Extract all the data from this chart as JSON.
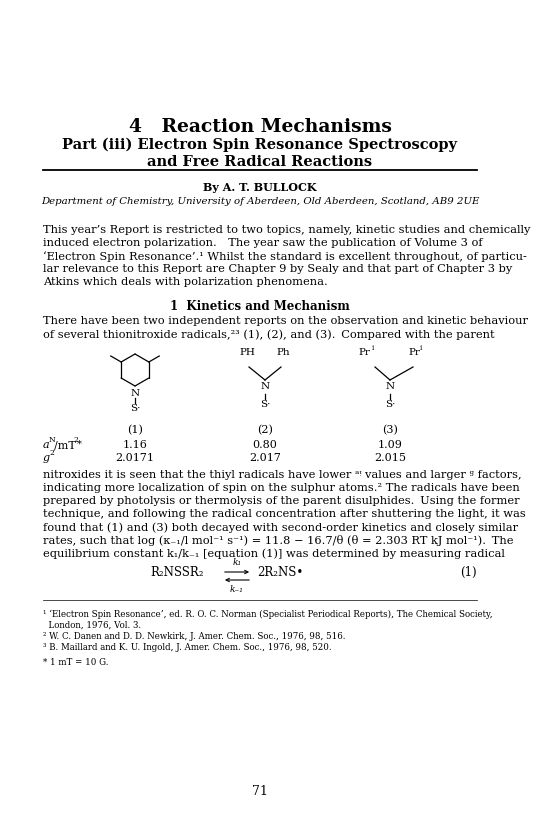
{
  "title": "4   Reaction Mechanisms",
  "subtitle_line1": "Part (iii) Electron Spin Resonance Spectroscopy",
  "subtitle_line2": "and Free Radical Reactions",
  "author": "By A. T. BULLOCK",
  "department": "Department of Chemistry, University of Aberdeen, Old Aberdeen, Scotland, AB9 2UE",
  "intro_line1": "This year’s Report is restricted to two topics, namely, kinetic studies and chemically",
  "intro_line2": "induced electron polarization.  The year saw the publication of Volume 3 of",
  "intro_line3": "‘Electron Spin Resonance’.¹ Whilst the standard is excellent throughout, of particu-",
  "intro_line4": "lar relevance to this Report are Chapter 9 by Sealy and that part of Chapter 3 by",
  "intro_line5": "Atkins which deals with polarization phenomena.",
  "section_heading": "1  Kinetics and Mechanism",
  "para2_line1": "There have been two independent reports on the observation and kinetic behaviour",
  "para2_line2": "of several thionitroxide radicals,²³ (1), (2), and (3). Compared with the parent",
  "val_aN_1": "1.16",
  "val_aN_2": "0.80",
  "val_aN_3": "1.09",
  "val_g_1": "2.0171",
  "val_g_2": "2.017",
  "val_g_3": "2.015",
  "para3_line1": "nitroxides it is seen that the thiyl radicals have lower ᵃᵎ values and larger ᵍ factors,",
  "para3_line2": "indicating more localization of spin on the sulphur atoms.² The radicals have been",
  "para3_line3": "prepared by photolysis or thermolysis of the parent disulphides. Using the former",
  "para3_line4": "technique, and following the radical concentration after shuttering the light, it was",
  "para3_line5": "found that (1) and (3) both decayed with second-order kinetics and closely similar",
  "para3_line6": "rates, such that log (κ₋₁/l mol⁻¹ s⁻¹) = 11.8 − 16.7/θ (θ = 2.303 RT kJ mol⁻¹). The",
  "para3_line7": "equilibrium constant k₁/k₋₁ [equation (1)] was determined by measuring radical",
  "footnote1": "¹ ‘Electron Spin Resonance’, ed. R. O. C. Norman (Specialist Periodical Reports), The Chemical Society,",
  "footnote1b": "  London, 1976, Vol. 3.",
  "footnote2": "² W. C. Danen and D. D. Newkirk, J. Amer. Chem. Soc., 1976, 98, 516.",
  "footnote3": "³ B. Maillard and K. U. Ingold, J. Amer. Chem. Soc., 1976, 98, 520.",
  "footnote_mT": "* 1 mT = 10 G.",
  "page_number": "71",
  "bg_color": "#ffffff",
  "text_color": "#000000"
}
